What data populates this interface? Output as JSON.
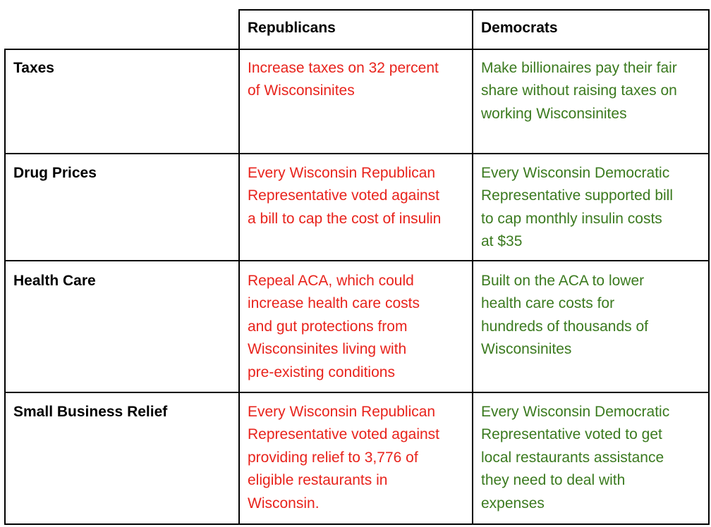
{
  "table": {
    "headers": {
      "topic": "",
      "republicans": "Republicans",
      "democrats": "Democrats"
    },
    "rows": [
      {
        "topic": "Taxes",
        "republicans": [
          "Increase taxes on 32 percent",
          "of Wisconsinites"
        ],
        "democrats": [
          "Make billionaires pay their fair",
          "share without raising taxes on",
          "working Wisconsinites"
        ]
      },
      {
        "topic": "Drug Prices",
        "republicans": [
          "Every Wisconsin Republican",
          "Representative voted against",
          "a bill to cap the cost of insulin"
        ],
        "democrats": [
          "Every Wisconsin Democratic",
          "Representative supported bill",
          "to cap monthly insulin costs",
          "at $35"
        ]
      },
      {
        "topic": "Health Care",
        "republicans": [
          "Repeal ACA, which could",
          "increase health care costs",
          "and gut protections from",
          "Wisconsinites living with",
          "pre-existing conditions"
        ],
        "democrats": [
          "Built on the ACA to lower",
          "health care costs for",
          "hundreds of thousands of",
          "Wisconsinites"
        ]
      },
      {
        "topic": "Small Business Relief",
        "republicans": [
          "Every Wisconsin Republican",
          "Representative voted against",
          "providing relief to 3,776 of",
          "eligible restaurants in",
          "Wisconsin."
        ],
        "democrats": [
          "Every Wisconsin Democratic",
          "Representative voted to get",
          "local restaurants assistance",
          "they need to deal with",
          "expenses"
        ]
      }
    ],
    "colors": {
      "republicans_text": "#e8231c",
      "democrats_text": "#3b7a1f",
      "header_text": "#000000",
      "border": "#000000"
    }
  }
}
